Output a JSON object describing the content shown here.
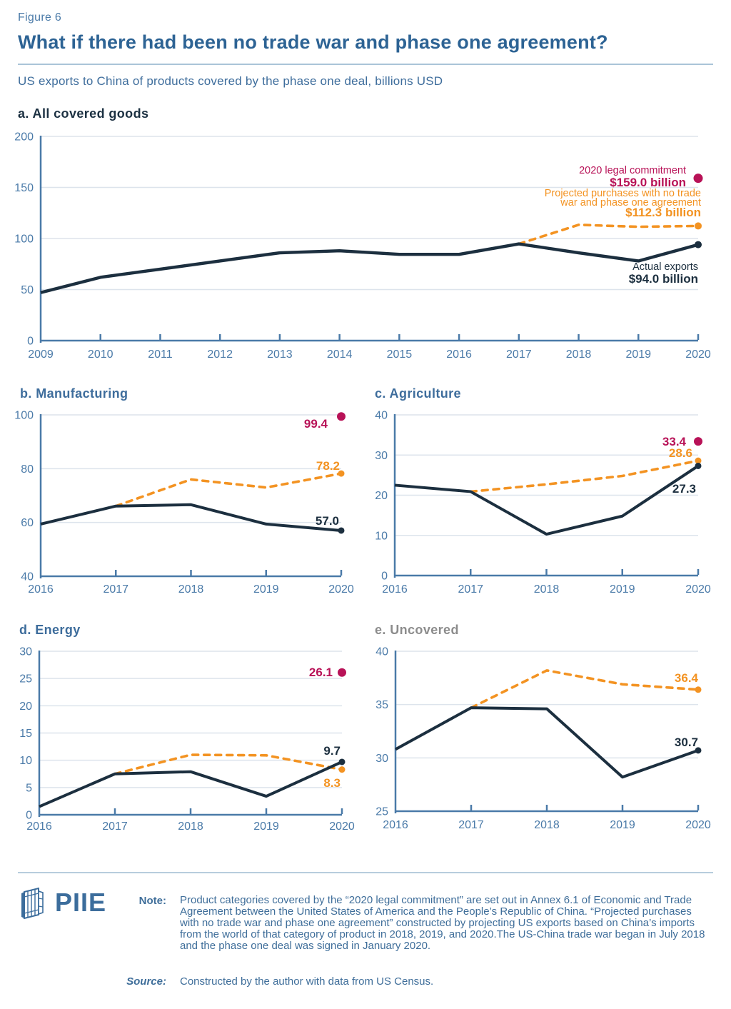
{
  "header": {
    "kicker": "Figure 6",
    "title": "What if there had been no trade war and phase one agreement?",
    "subtitle": "US exports to China of products covered by the phase one deal, billions USD"
  },
  "colors": {
    "actual": "#1c2f3f",
    "projected": "#f39322",
    "commitment": "#b81257",
    "axis": "#4a7aa8",
    "grid": "#dde4ec"
  },
  "chart_data": [
    {
      "id": "a",
      "type": "line",
      "title": "a. All covered goods",
      "title_style": "dark",
      "x": [
        2009,
        2010,
        2011,
        2012,
        2013,
        2014,
        2015,
        2016,
        2017,
        2018,
        2019,
        2020
      ],
      "ylim": [
        0,
        200
      ],
      "yticks": [
        0,
        50,
        100,
        150,
        200
      ],
      "series": [
        {
          "name": "Actual exports",
          "role": "actual",
          "x": [
            2009,
            2010,
            2011,
            2012,
            2013,
            2014,
            2015,
            2016,
            2017,
            2018,
            2019,
            2020
          ],
          "values": [
            47,
            62,
            70,
            78,
            86,
            88,
            84.5,
            84.5,
            94.7,
            86,
            78,
            94
          ]
        },
        {
          "name": "Projected purchases with no trade war and phase one agreement",
          "role": "projected",
          "x": [
            2017,
            2018,
            2019,
            2020
          ],
          "values": [
            94.7,
            113.4,
            111.5,
            112.3
          ]
        }
      ],
      "commitment": {
        "name": "2020 legal commitment",
        "x": 2020,
        "value": 159.0
      },
      "labels": {
        "commitment": [
          "2020 legal commitment",
          "$159.0 billion"
        ],
        "projected": [
          "Projected purchases with no trade",
          "war and phase one agreement",
          "$112.3 billion"
        ],
        "actual": [
          "Actual exports",
          "$94.0 billion"
        ]
      }
    },
    {
      "id": "b",
      "type": "line",
      "title": "b. Manufacturing",
      "title_style": "blue",
      "x": [
        2016,
        2017,
        2018,
        2019,
        2020
      ],
      "ylim": [
        40,
        100
      ],
      "yticks": [
        40,
        60,
        80,
        100
      ],
      "series": [
        {
          "name": "Actual exports",
          "role": "actual",
          "x": [
            2016,
            2017,
            2018,
            2019,
            2020
          ],
          "values": [
            59.4,
            66.1,
            66.6,
            59.4,
            57.0
          ]
        },
        {
          "name": "Projected purchases with no trade war and phase one agreement",
          "role": "projected",
          "x": [
            2017,
            2018,
            2019,
            2020
          ],
          "values": [
            66.1,
            76.0,
            73.0,
            78.2
          ]
        }
      ],
      "commitment": {
        "name": "2020 legal commitment",
        "x": 2020,
        "value": 99.4
      },
      "labels": {
        "commitment": [
          "99.4"
        ],
        "projected": [
          "78.2"
        ],
        "actual": [
          "57.0"
        ]
      }
    },
    {
      "id": "c",
      "type": "line",
      "title": "c. Agriculture",
      "title_style": "blue",
      "x": [
        2016,
        2017,
        2018,
        2019,
        2020
      ],
      "ylim": [
        0,
        40
      ],
      "yticks": [
        0,
        10,
        20,
        30,
        40
      ],
      "series": [
        {
          "name": "Actual exports",
          "role": "actual",
          "x": [
            2016,
            2017,
            2018,
            2019,
            2020
          ],
          "values": [
            22.5,
            20.9,
            10.3,
            14.8,
            27.3
          ]
        },
        {
          "name": "Projected purchases with no trade war and phase one agreement",
          "role": "projected",
          "x": [
            2017,
            2018,
            2019,
            2020
          ],
          "values": [
            20.9,
            22.7,
            24.8,
            28.6
          ]
        }
      ],
      "commitment": {
        "name": "2020 legal commitment",
        "x": 2020,
        "value": 33.4
      },
      "labels": {
        "commitment": [
          "33.4"
        ],
        "projected": [
          "28.6"
        ],
        "actual": [
          "27.3"
        ]
      }
    },
    {
      "id": "d",
      "type": "line",
      "title": "d. Energy",
      "title_style": "blue",
      "x": [
        2016,
        2017,
        2018,
        2019,
        2020
      ],
      "ylim": [
        0,
        30
      ],
      "yticks": [
        0,
        5,
        10,
        15,
        20,
        25,
        30
      ],
      "series": [
        {
          "name": "Actual exports",
          "role": "actual",
          "x": [
            2016,
            2017,
            2018,
            2019,
            2020
          ],
          "values": [
            1.5,
            7.5,
            7.9,
            3.4,
            9.7
          ]
        },
        {
          "name": "Projected purchases with no trade war and phase one agreement",
          "role": "projected",
          "x": [
            2017,
            2018,
            2019,
            2020
          ],
          "values": [
            7.5,
            11.0,
            10.9,
            8.3
          ]
        }
      ],
      "commitment": {
        "name": "2020 legal commitment",
        "x": 2020,
        "value": 26.1
      },
      "labels": {
        "commitment": [
          "26.1"
        ],
        "projected": [
          "8.3"
        ],
        "actual": [
          "9.7"
        ]
      }
    },
    {
      "id": "e",
      "type": "line",
      "title": "e. Uncovered",
      "title_style": "gray",
      "x": [
        2016,
        2017,
        2018,
        2019,
        2020
      ],
      "ylim": [
        25,
        40
      ],
      "yticks": [
        25,
        30,
        35,
        40
      ],
      "series": [
        {
          "name": "Actual exports",
          "role": "actual",
          "x": [
            2016,
            2017,
            2018,
            2019,
            2020
          ],
          "values": [
            30.8,
            34.7,
            34.6,
            28.2,
            30.7
          ]
        },
        {
          "name": "Projected purchases with no trade war and phase one agreement",
          "role": "projected",
          "x": [
            2017,
            2018,
            2019,
            2020
          ],
          "values": [
            34.7,
            38.2,
            36.9,
            36.4
          ]
        }
      ],
      "labels": {
        "projected": [
          "36.4"
        ],
        "actual": [
          "30.7"
        ]
      }
    }
  ],
  "footer": {
    "logo_text": "PIIE",
    "note_label": "Note:",
    "note": "Product categories covered by the “2020 legal commitment” are set out in Annex 6.1 of Economic and Trade Agreement between the United States of America and the People’s Republic of China. “Projected purchases with no trade war and phase one agreement” constructed by projecting US exports based on China’s imports from the world of that category of product in 2018, 2019, and 2020.The US-China trade war began in July 2018 and the phase one deal was signed in January 2020.",
    "source_label": "Source:",
    "source": "Constructed by the author with data from US Census."
  }
}
